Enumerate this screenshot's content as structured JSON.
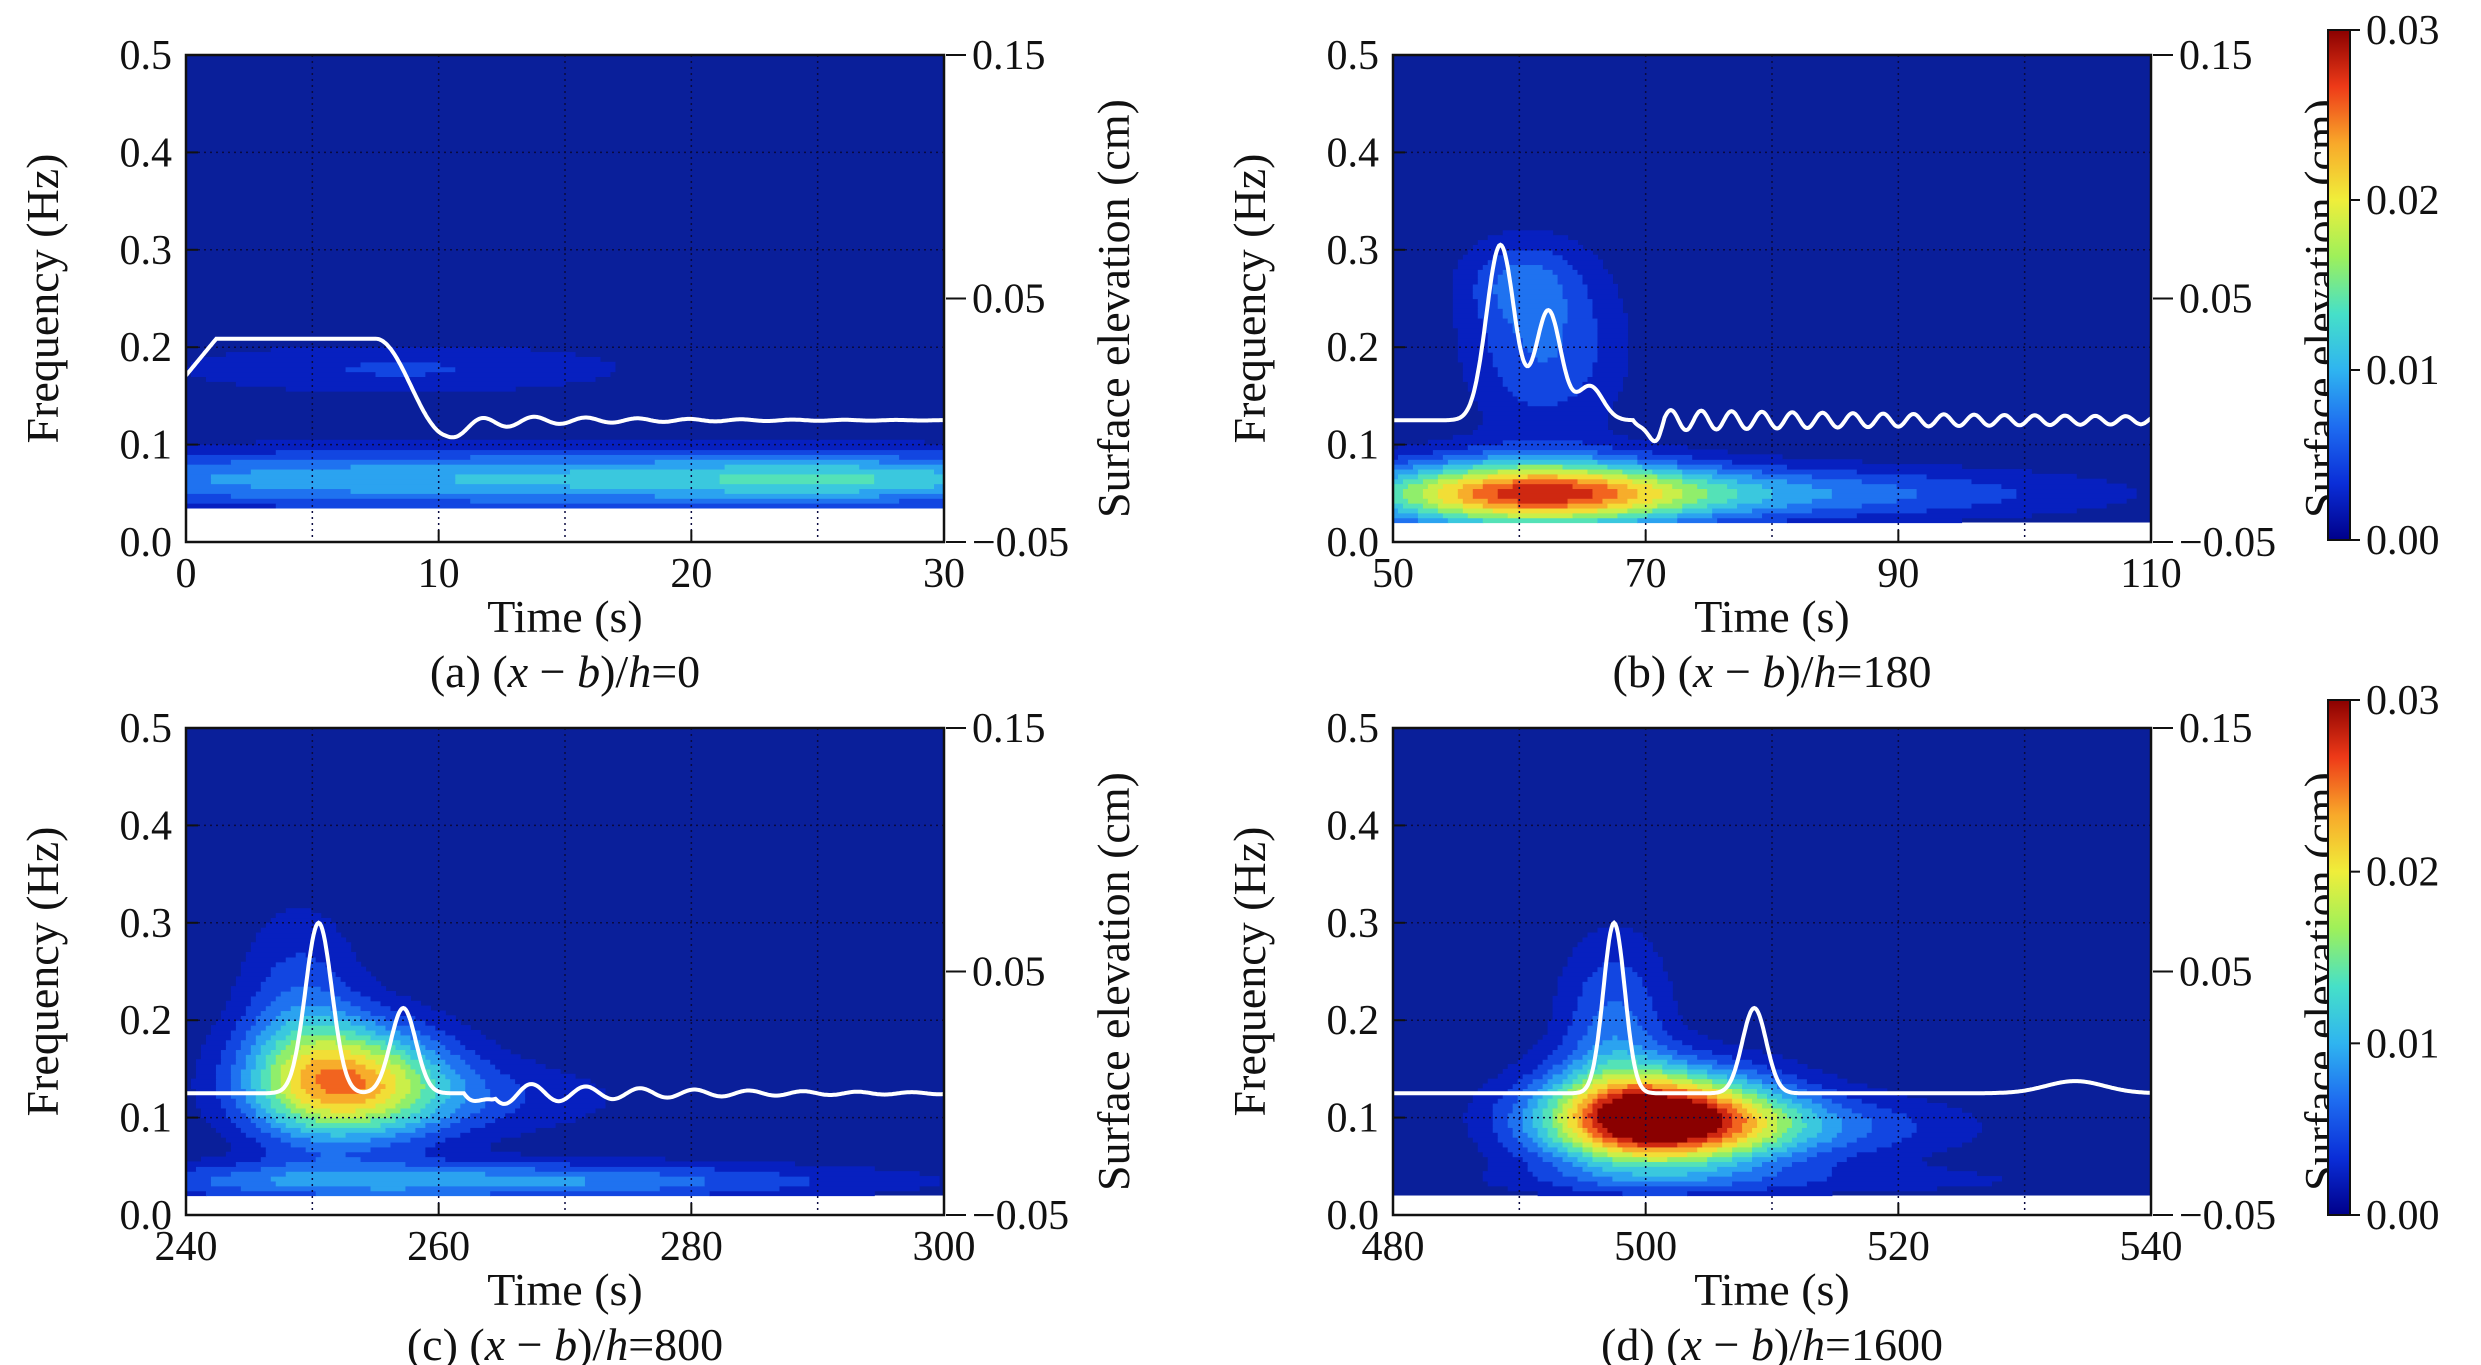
{
  "figure": {
    "panel_layout": "2x2 grid",
    "colormap": {
      "name": "jet",
      "stops": [
        "#00008a",
        "#0a2ed8",
        "#1e6cf0",
        "#2fb4f0",
        "#46e0c8",
        "#9ef05a",
        "#f0ee3a",
        "#f8a82a",
        "#ee3a18",
        "#8a0000"
      ],
      "background": "#0a1f9a"
    },
    "colorbars": [
      {
        "ticks": [
          "0.00",
          "0.01",
          "0.02",
          "0.03"
        ],
        "range": [
          0,
          0.03
        ],
        "attached_to": "b"
      },
      {
        "ticks": [
          "0.00",
          "0.01",
          "0.02",
          "0.03"
        ],
        "range": [
          0,
          0.03
        ],
        "attached_to": "d"
      }
    ],
    "line_color": "#ffffff"
  },
  "chart_data": [
    {
      "id": "a",
      "type": "heatmap",
      "title": "",
      "caption": {
        "prefix": "(a) (",
        "x": "x",
        "minus": " − ",
        "b": "b",
        "mid": ")/",
        "h": "h",
        "value": "=0"
      },
      "xlabel": "Time (s)",
      "ylabel": "Frequency (Hz)",
      "y2label": "Surface elevation (cm)",
      "xlim": [
        0,
        30
      ],
      "ylim": [
        0,
        0.5
      ],
      "y2lim": [
        -0.05,
        0.15
      ],
      "xticks": [
        "0",
        "10",
        "20",
        "30"
      ],
      "yticks": [
        "0.0",
        "0.1",
        "0.2",
        "0.3",
        "0.4",
        "0.5"
      ],
      "y2ticks": [
        "0.15",
        "0.05",
        "−0.05"
      ],
      "grid": true,
      "blobs": [
        {
          "t": 15,
          "f": 0.065,
          "st": 20,
          "sf": 0.022,
          "peak": 0.011
        },
        {
          "t": 26,
          "f": 0.065,
          "st": 5,
          "sf": 0.015,
          "peak": 0.004
        },
        {
          "t": 8.5,
          "f": 0.178,
          "st": 7.0,
          "sf": 0.02,
          "peak": 0.0045
        }
      ],
      "white_band": {
        "from": 0,
        "to": 0.035
      },
      "elevation": {
        "base": 0.0,
        "kind": "plateau",
        "rise_start": 0.0,
        "rise_end": 1.2,
        "fall_start": 7.5,
        "fall_end": 10.2,
        "level": 0.0335,
        "osc_amp": 0.0032,
        "osc_period": 2.05,
        "osc_decay": 0.18
      }
    },
    {
      "id": "b",
      "type": "heatmap",
      "title": "",
      "caption": {
        "prefix": "(b) (",
        "x": "x",
        "minus": " − ",
        "b": "b",
        "mid": ")/",
        "h": "h",
        "value": "=180"
      },
      "xlabel": "Time (s)",
      "ylabel": "Frequency (Hz)",
      "y2label": "Surface elevation (cm)",
      "xlim": [
        50,
        110
      ],
      "ylim": [
        0,
        0.5
      ],
      "y2lim": [
        -0.05,
        0.15
      ],
      "xticks": [
        "50",
        "70",
        "90",
        "110"
      ],
      "yticks": [
        "0.0",
        "0.1",
        "0.2",
        "0.3",
        "0.4",
        "0.5"
      ],
      "y2ticks": [
        "0.15",
        "0.05",
        "−0.05"
      ],
      "grid": true,
      "blobs": [
        {
          "t": 61,
          "f": 0.05,
          "st": 9,
          "sf": 0.026,
          "peak": 0.02
        },
        {
          "t": 75,
          "f": 0.05,
          "st": 20,
          "sf": 0.02,
          "peak": 0.009
        },
        {
          "t": 62,
          "f": 0.2,
          "st": 4.5,
          "sf": 0.065,
          "peak": 0.0065
        },
        {
          "t": 60,
          "f": 0.27,
          "st": 3.2,
          "sf": 0.03,
          "peak": 0.0045
        }
      ],
      "white_band": {
        "from": 0,
        "to": 0.018
      },
      "elevation": {
        "base": 0.0,
        "kind": "peaks",
        "peaks": [
          {
            "t": 58.5,
            "a": 0.072,
            "w": 1.1
          },
          {
            "t": 62.3,
            "a": 0.045,
            "w": 1.0
          },
          {
            "t": 65.6,
            "a": 0.014,
            "w": 1.0
          }
        ],
        "osc_start": 69,
        "osc_amp": 0.0045,
        "osc_period": 2.4,
        "osc_decay": 0.025
      }
    },
    {
      "id": "c",
      "type": "heatmap",
      "title": "",
      "caption": {
        "prefix": "(c) (",
        "x": "x",
        "minus": " − ",
        "b": "b",
        "mid": ")/",
        "h": "h",
        "value": "=800"
      },
      "xlabel": "Time (s)",
      "ylabel": "Frequency (Hz)",
      "y2label": "Surface elevation (cm)",
      "xlim": [
        240,
        300
      ],
      "ylim": [
        0,
        0.5
      ],
      "y2lim": [
        -0.05,
        0.15
      ],
      "xticks": [
        "240",
        "260",
        "280",
        "300"
      ],
      "yticks": [
        "0.0",
        "0.1",
        "0.2",
        "0.3",
        "0.4",
        "0.5"
      ],
      "y2ticks": [
        "0.15",
        "0.05",
        "−0.05"
      ],
      "grid": true,
      "blobs": [
        {
          "t": 253,
          "f": 0.138,
          "st": 5.5,
          "sf": 0.042,
          "peak": 0.02
        },
        {
          "t": 249,
          "f": 0.2,
          "st": 3.5,
          "sf": 0.08,
          "peak": 0.006
        },
        {
          "t": 262,
          "f": 0.12,
          "st": 10,
          "sf": 0.03,
          "peak": 0.004
        },
        {
          "t": 262,
          "f": 0.035,
          "st": 22,
          "sf": 0.014,
          "peak": 0.0095
        }
      ],
      "white_band": {
        "from": 0,
        "to": 0.02
      },
      "elevation": {
        "base": 0.0,
        "kind": "peaks",
        "peaks": [
          {
            "t": 250.5,
            "a": 0.07,
            "w": 1.05
          },
          {
            "t": 257.2,
            "a": 0.035,
            "w": 1.0
          }
        ],
        "osc_start": 262,
        "osc_amp": 0.0055,
        "osc_period": 4.3,
        "osc_decay": 0.07
      }
    },
    {
      "id": "d",
      "type": "heatmap",
      "title": "",
      "caption": {
        "prefix": "(d) (",
        "x": "x",
        "minus": " − ",
        "b": "b",
        "mid": ")/",
        "h": "h",
        "value": "=1600"
      },
      "xlabel": "Time (s)",
      "ylabel": "Frequency (Hz)",
      "y2label": "Surface elevation (cm)",
      "xlim": [
        480,
        540
      ],
      "ylim": [
        0,
        0.5
      ],
      "y2lim": [
        -0.05,
        0.15
      ],
      "xticks": [
        "480",
        "500",
        "520",
        "540"
      ],
      "yticks": [
        "0.0",
        "0.1",
        "0.2",
        "0.3",
        "0.4",
        "0.5"
      ],
      "y2ticks": [
        "0.15",
        "0.05",
        "−0.05"
      ],
      "grid": true,
      "blobs": [
        {
          "t": 501,
          "f": 0.1,
          "st": 6.5,
          "sf": 0.035,
          "peak": 0.03
        },
        {
          "t": 511,
          "f": 0.09,
          "st": 10,
          "sf": 0.025,
          "peak": 0.007
        },
        {
          "t": 497.5,
          "f": 0.19,
          "st": 3.2,
          "sf": 0.07,
          "peak": 0.007
        },
        {
          "t": 510,
          "f": 0.035,
          "st": 20,
          "sf": 0.012,
          "peak": 0.003
        }
      ],
      "white_band": {
        "from": 0,
        "to": 0.02
      },
      "elevation": {
        "base": 0.0,
        "kind": "peaks",
        "peaks": [
          {
            "t": 497.5,
            "a": 0.07,
            "w": 0.85
          },
          {
            "t": 508.6,
            "a": 0.035,
            "w": 0.95
          },
          {
            "t": 534,
            "a": 0.005,
            "w": 2.3
          }
        ],
        "osc_start": 530,
        "osc_amp": 0.0,
        "osc_period": 5,
        "osc_decay": 0.1
      }
    }
  ]
}
